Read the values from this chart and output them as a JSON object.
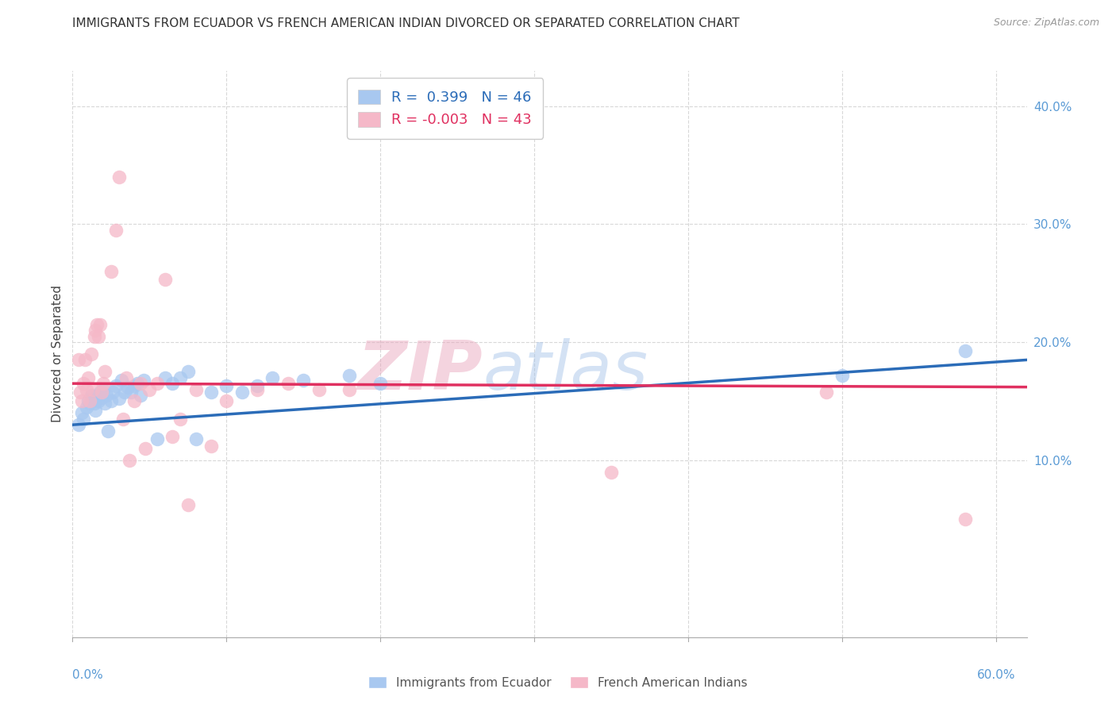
{
  "title": "IMMIGRANTS FROM ECUADOR VS FRENCH AMERICAN INDIAN DIVORCED OR SEPARATED CORRELATION CHART",
  "source": "Source: ZipAtlas.com",
  "ylabel": "Divorced or Separated",
  "ylabel_right_ticks": [
    "40.0%",
    "30.0%",
    "20.0%",
    "10.0%"
  ],
  "ylabel_right_vals": [
    0.4,
    0.3,
    0.2,
    0.1
  ],
  "xlim": [
    0.0,
    0.62
  ],
  "ylim": [
    -0.05,
    0.43
  ],
  "legend": {
    "blue_label": "R =  0.399   N = 46",
    "pink_label": "R = -0.003   N = 43"
  },
  "watermark_zip": "ZIP",
  "watermark_atlas": "atlas",
  "blue_color": "#A8C8F0",
  "pink_color": "#F5B8C8",
  "blue_line_color": "#2B6CB8",
  "pink_line_color": "#E03060",
  "blue_scatter": [
    [
      0.004,
      0.13
    ],
    [
      0.006,
      0.14
    ],
    [
      0.007,
      0.135
    ],
    [
      0.009,
      0.145
    ],
    [
      0.01,
      0.15
    ],
    [
      0.011,
      0.148
    ],
    [
      0.012,
      0.155
    ],
    [
      0.013,
      0.152
    ],
    [
      0.014,
      0.148
    ],
    [
      0.015,
      0.142
    ],
    [
      0.016,
      0.155
    ],
    [
      0.017,
      0.15
    ],
    [
      0.018,
      0.158
    ],
    [
      0.019,
      0.153
    ],
    [
      0.02,
      0.16
    ],
    [
      0.021,
      0.148
    ],
    [
      0.022,
      0.155
    ],
    [
      0.023,
      0.125
    ],
    [
      0.025,
      0.15
    ],
    [
      0.026,
      0.158
    ],
    [
      0.028,
      0.163
    ],
    [
      0.03,
      0.152
    ],
    [
      0.032,
      0.168
    ],
    [
      0.034,
      0.158
    ],
    [
      0.036,
      0.162
    ],
    [
      0.038,
      0.158
    ],
    [
      0.04,
      0.163
    ],
    [
      0.042,
      0.165
    ],
    [
      0.044,
      0.155
    ],
    [
      0.046,
      0.168
    ],
    [
      0.055,
      0.118
    ],
    [
      0.06,
      0.17
    ],
    [
      0.065,
      0.165
    ],
    [
      0.07,
      0.17
    ],
    [
      0.075,
      0.175
    ],
    [
      0.08,
      0.118
    ],
    [
      0.09,
      0.158
    ],
    [
      0.1,
      0.163
    ],
    [
      0.11,
      0.158
    ],
    [
      0.12,
      0.163
    ],
    [
      0.13,
      0.17
    ],
    [
      0.15,
      0.168
    ],
    [
      0.18,
      0.172
    ],
    [
      0.2,
      0.165
    ],
    [
      0.5,
      0.172
    ],
    [
      0.58,
      0.193
    ]
  ],
  "pink_scatter": [
    [
      0.004,
      0.185
    ],
    [
      0.005,
      0.158
    ],
    [
      0.006,
      0.15
    ],
    [
      0.007,
      0.165
    ],
    [
      0.008,
      0.185
    ],
    [
      0.009,
      0.16
    ],
    [
      0.01,
      0.17
    ],
    [
      0.011,
      0.15
    ],
    [
      0.012,
      0.19
    ],
    [
      0.013,
      0.16
    ],
    [
      0.014,
      0.205
    ],
    [
      0.015,
      0.21
    ],
    [
      0.016,
      0.215
    ],
    [
      0.017,
      0.205
    ],
    [
      0.018,
      0.215
    ],
    [
      0.019,
      0.158
    ],
    [
      0.02,
      0.165
    ],
    [
      0.021,
      0.175
    ],
    [
      0.025,
      0.26
    ],
    [
      0.028,
      0.295
    ],
    [
      0.03,
      0.34
    ],
    [
      0.033,
      0.135
    ],
    [
      0.035,
      0.17
    ],
    [
      0.037,
      0.1
    ],
    [
      0.04,
      0.15
    ],
    [
      0.044,
      0.165
    ],
    [
      0.047,
      0.11
    ],
    [
      0.05,
      0.16
    ],
    [
      0.055,
      0.165
    ],
    [
      0.06,
      0.253
    ],
    [
      0.065,
      0.12
    ],
    [
      0.07,
      0.135
    ],
    [
      0.075,
      0.062
    ],
    [
      0.08,
      0.16
    ],
    [
      0.09,
      0.112
    ],
    [
      0.1,
      0.15
    ],
    [
      0.12,
      0.16
    ],
    [
      0.14,
      0.165
    ],
    [
      0.16,
      0.16
    ],
    [
      0.18,
      0.16
    ],
    [
      0.35,
      0.09
    ],
    [
      0.49,
      0.158
    ],
    [
      0.58,
      0.05
    ]
  ],
  "blue_line": [
    [
      0.0,
      0.13
    ],
    [
      0.62,
      0.185
    ]
  ],
  "pink_line": [
    [
      0.0,
      0.165
    ],
    [
      0.62,
      0.162
    ]
  ],
  "grid_color": "#D8D8D8",
  "grid_style": "--",
  "background_color": "#FFFFFF",
  "title_fontsize": 11,
  "axis_label_fontsize": 11,
  "tick_fontsize": 11
}
